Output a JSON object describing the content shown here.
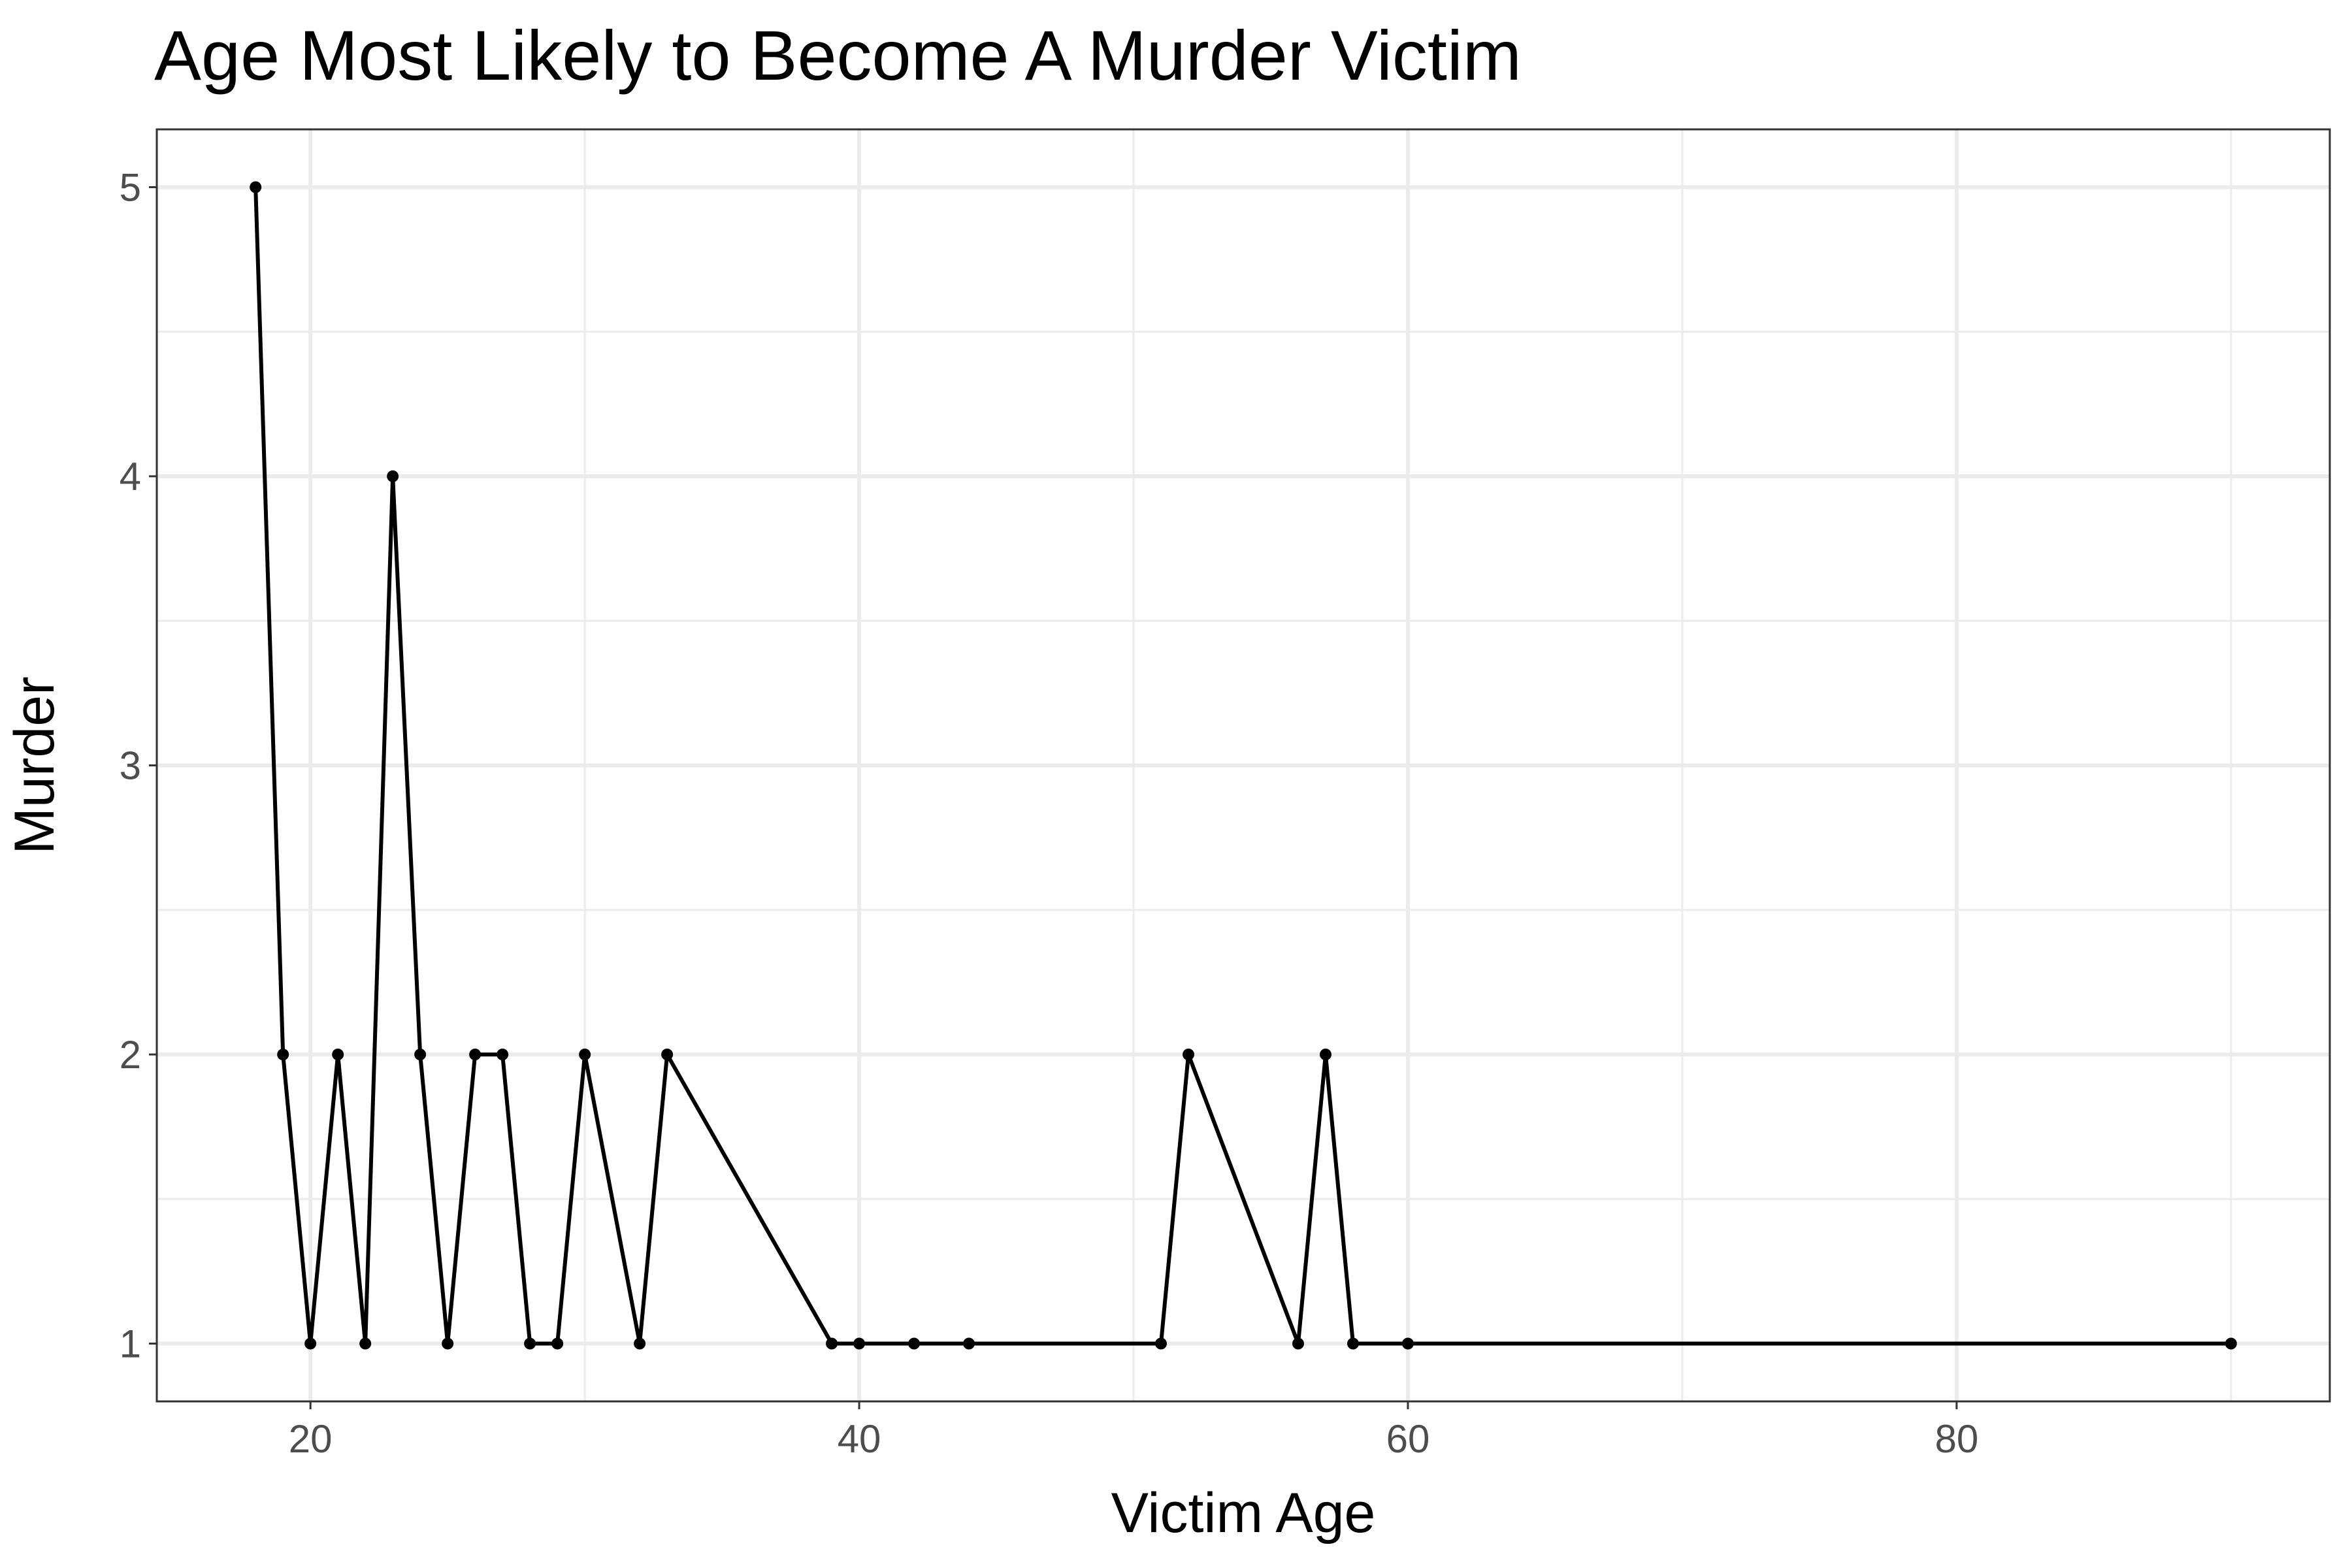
{
  "chart_data": {
    "type": "line",
    "title": "Age Most Likely to Become A Murder Victim",
    "xlabel": "Victim Age",
    "ylabel": "Murder",
    "xlim": [
      14.4,
      93.6
    ],
    "ylim": [
      0.8,
      5.2
    ],
    "xticks": [
      20,
      40,
      60,
      80
    ],
    "yticks": [
      1,
      2,
      3,
      4,
      5
    ],
    "x_minor_breaks": [
      30,
      50,
      70,
      90
    ],
    "y_minor_breaks": [
      1.5,
      2.5,
      3.5,
      4.5
    ],
    "grid": true,
    "legend": "none",
    "theme": "bw",
    "colors": {
      "line": "#000000",
      "points": "#000000",
      "grid_major": "#ebebeb",
      "grid_minor": "#ebebeb",
      "panel_border": "#333333",
      "tick_label": "#4d4d4d",
      "background": "#ffffff"
    },
    "series": [
      {
        "x": [
          18,
          19,
          20,
          21,
          22,
          23,
          24,
          25,
          26,
          27,
          28,
          29,
          30,
          32,
          33,
          39,
          40,
          42,
          44,
          51,
          52,
          56,
          57,
          58,
          60,
          90
        ],
        "y": [
          5,
          2,
          1,
          2,
          1,
          4,
          2,
          1,
          2,
          2,
          1,
          1,
          2,
          1,
          2,
          1,
          1,
          1,
          1,
          1,
          2,
          1,
          2,
          1,
          1,
          1
        ]
      }
    ]
  }
}
